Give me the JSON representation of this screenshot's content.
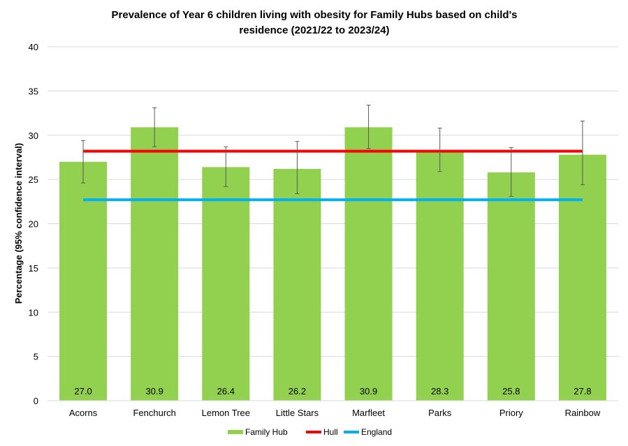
{
  "chart_data": {
    "type": "bar",
    "title_line1": "Prevalence of Year 6 children living with obesity for Family Hubs based on child's",
    "title_line2": "residence (2021/22 to 2023/24)",
    "ylabel": "Percentage (95% confidence interval)",
    "xlabel": "",
    "ylim": [
      0,
      40
    ],
    "yticks": [
      0,
      5,
      10,
      15,
      20,
      25,
      30,
      35,
      40
    ],
    "grid": true,
    "categories": [
      "Acorns",
      "Fenchurch",
      "Lemon Tree",
      "Little Stars",
      "Marfleet",
      "Parks",
      "Priory",
      "Rainbow"
    ],
    "values": [
      27.0,
      30.9,
      26.4,
      26.2,
      30.9,
      28.3,
      25.8,
      27.8
    ],
    "value_labels": [
      "27.0",
      "30.9",
      "26.4",
      "26.2",
      "30.9",
      "28.3",
      "25.8",
      "27.8"
    ],
    "ci_lower": [
      24.6,
      28.7,
      24.2,
      23.4,
      28.5,
      25.9,
      23.1,
      24.4
    ],
    "ci_upper": [
      29.4,
      33.1,
      28.7,
      29.3,
      33.4,
      30.8,
      28.6,
      31.6
    ],
    "reference_lines": [
      {
        "name": "Hull",
        "value": 28.2,
        "color": "#ff0000"
      },
      {
        "name": "England",
        "value": 22.7,
        "color": "#00b0f0"
      }
    ],
    "bar_color": "#92d050",
    "legend": [
      {
        "label": "Family Hub",
        "color": "#92d050"
      },
      {
        "label": "Hull",
        "color": "#ff0000"
      },
      {
        "label": "England",
        "color": "#00b0f0"
      }
    ],
    "legend_position": "bottom"
  }
}
